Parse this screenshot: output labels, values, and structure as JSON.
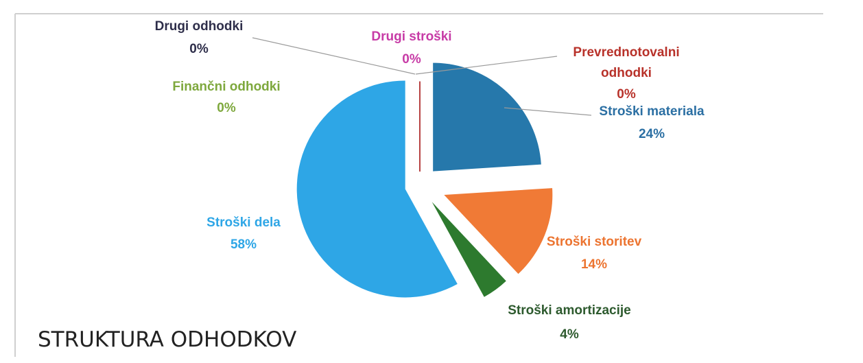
{
  "chart_data": {
    "type": "pie",
    "title": "STRUKTURA ODHODKOV",
    "slices": [
      {
        "name": "Stroški materiala",
        "percent_label": "24%",
        "value": 24,
        "color": "#2678ab"
      },
      {
        "name": "Stroški storitev",
        "percent_label": "14%",
        "value": 14,
        "color": "#f07a36"
      },
      {
        "name": "Stroški amortizacije",
        "percent_label": "4%",
        "value": 4,
        "color": "#2d7a2e"
      },
      {
        "name": "Stroški dela",
        "percent_label": "58%",
        "value": 58,
        "color": "#2ea6e6"
      },
      {
        "name": "Finančni odhodki",
        "percent_label": "0%",
        "value": 0,
        "color": "#7ea83d"
      },
      {
        "name": "Drugi odhodki",
        "percent_label": "0%",
        "value": 0,
        "color": "#333333"
      },
      {
        "name": "Drugi stroški",
        "percent_label": "0%",
        "value": 0,
        "color": "#c73ba6"
      },
      {
        "name": "Prevrednotovalni odhodki",
        "percent_label": "0%",
        "value": 0,
        "color": "#c0392b"
      }
    ]
  },
  "labels": {
    "materiala": {
      "name": "Stroški materiala",
      "pct": "24%"
    },
    "storitev": {
      "name": "Stroški storitev",
      "pct": "14%"
    },
    "amortizacije": {
      "name": "Stroški amortizacije",
      "pct": "4%"
    },
    "dela": {
      "name": "Stroški dela",
      "pct": "58%"
    },
    "financni": {
      "name": "Finančni odhodki",
      "pct": "0%"
    },
    "drugi_odhodki": {
      "name": "Drugi odhodki",
      "pct": "0%"
    },
    "drugi_stroski": {
      "name": "Drugi stroški",
      "pct": "0%"
    },
    "prevred": {
      "line1": "Prevrednotovalni",
      "line2": "odhodki",
      "pct": "0%"
    }
  }
}
